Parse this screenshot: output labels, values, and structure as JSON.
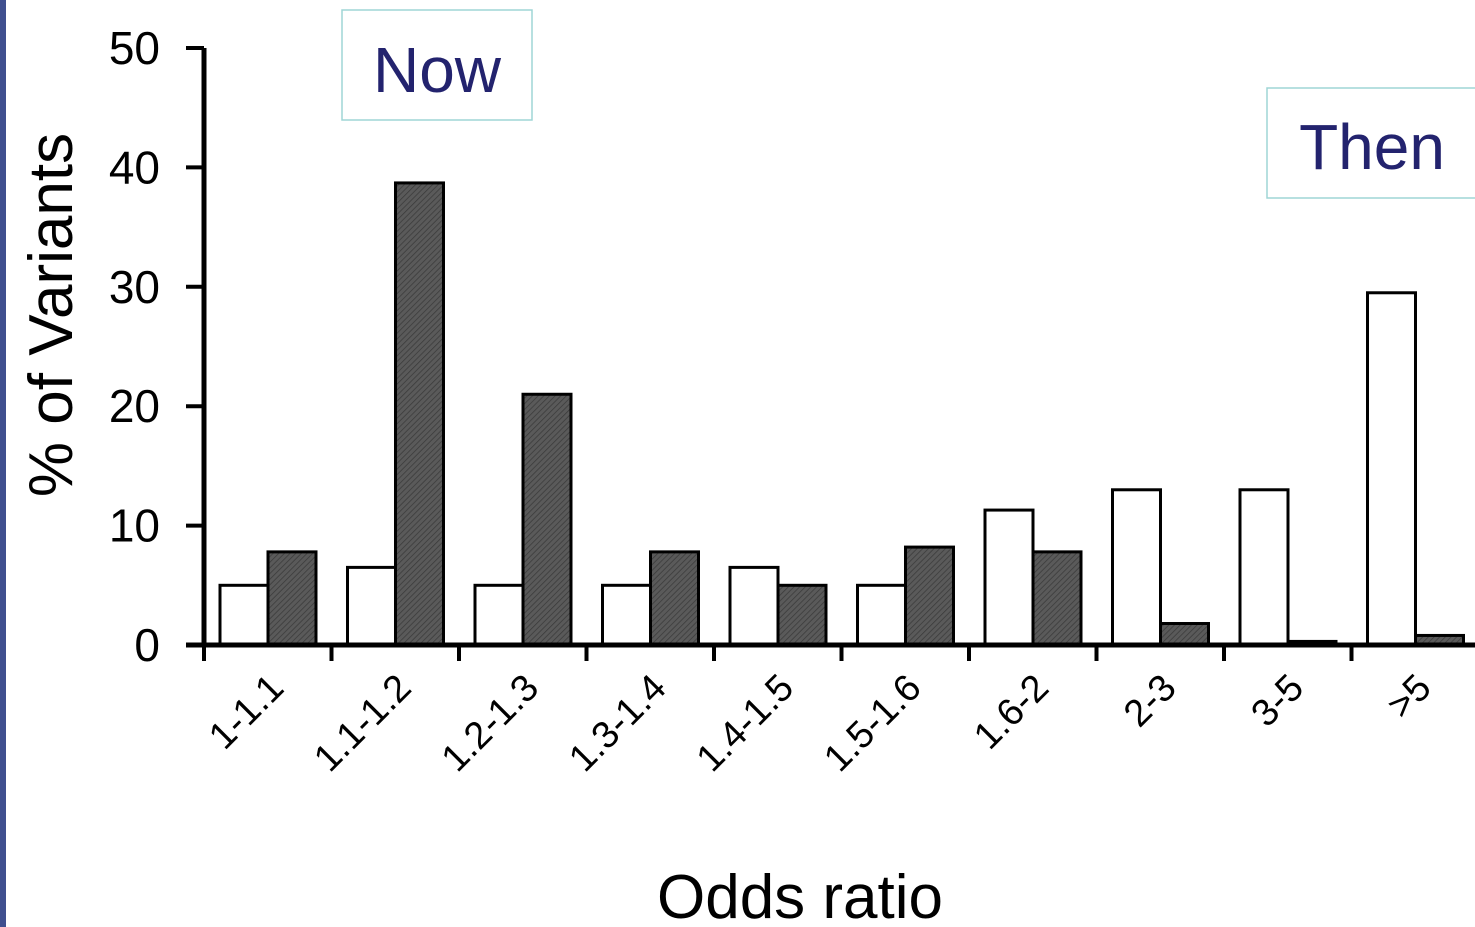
{
  "chart_data": {
    "type": "bar",
    "xlabel": "Odds ratio",
    "ylabel": "% of Variants",
    "ylim": [
      0,
      50
    ],
    "yticks": [
      "0",
      "10",
      "20",
      "30",
      "40",
      "50"
    ],
    "categories": [
      "1-1.1",
      "1.1-1.2",
      "1.2-1.3",
      "1.3-1.4",
      "1.4-1.5",
      "1.5-1.6",
      "1.6-2",
      "2-3",
      "3-5",
      ">5"
    ],
    "series": [
      {
        "name": "Then",
        "color": "#ffffff",
        "values": [
          5,
          6.5,
          5,
          5,
          6.5,
          5,
          11.3,
          13,
          13,
          29.5
        ]
      },
      {
        "name": "Now",
        "color": "#555555",
        "values": [
          7.8,
          38.7,
          21,
          7.8,
          5,
          8.2,
          7.8,
          1.8,
          0.3,
          0.8
        ]
      }
    ],
    "legend": [
      "Now",
      "Then"
    ],
    "grid": false
  }
}
